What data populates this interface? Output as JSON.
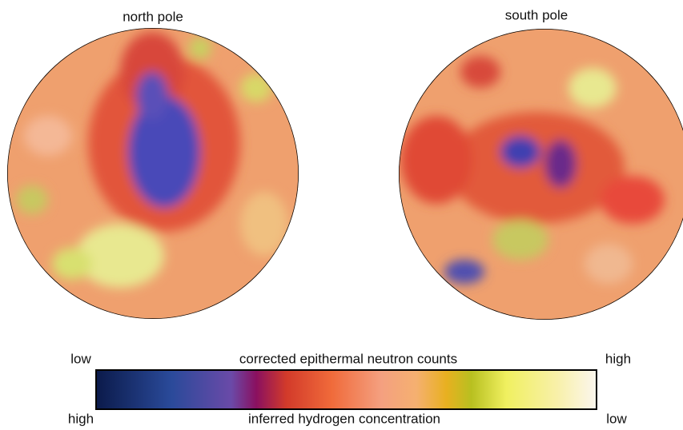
{
  "maps": [
    {
      "title": "north pole"
    },
    {
      "title": "south pole"
    }
  ],
  "colorbar": {
    "top_left": "low",
    "top_center": "corrected epithermal neutron counts",
    "top_right": "high",
    "bottom_left": "high",
    "bottom_center": "inferred hydrogen concentration",
    "bottom_right": "low"
  }
}
